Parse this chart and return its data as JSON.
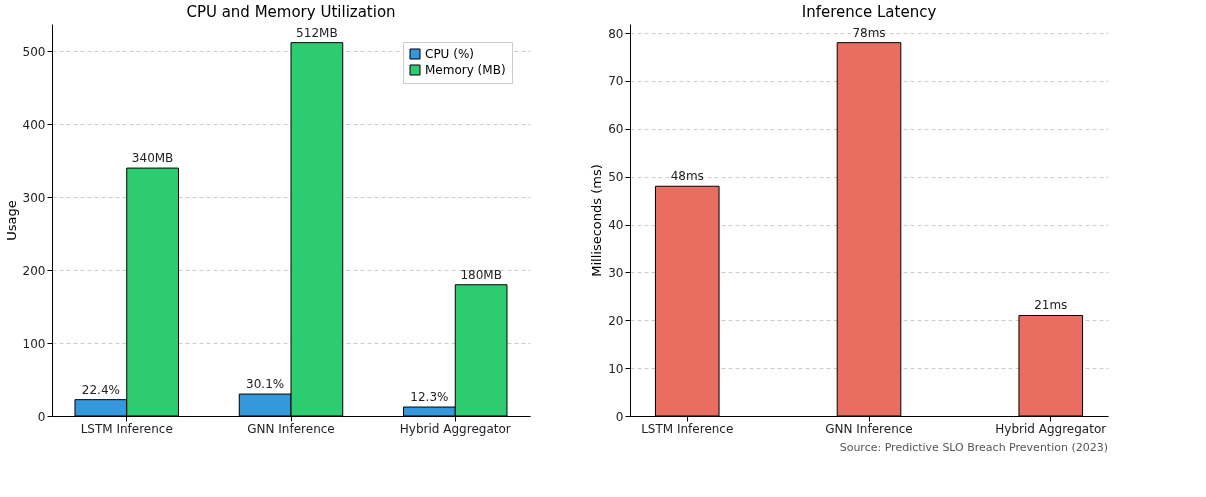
{
  "chart_data": [
    {
      "type": "bar",
      "title": "CPU and Memory Utilization",
      "ylabel": "Usage",
      "categories": [
        "LSTM Inference",
        "GNN Inference",
        "Hybrid Aggregator"
      ],
      "series": [
        {
          "name": "CPU (%)",
          "color": "#3498db",
          "values": [
            22.4,
            30.1,
            12.3
          ],
          "value_labels": [
            "22.4%",
            "30.1%",
            "12.3%"
          ]
        },
        {
          "name": "Memory (MB)",
          "color": "#2ecc71",
          "values": [
            340,
            512,
            180
          ],
          "value_labels": [
            "340MB",
            "512MB",
            "180MB"
          ]
        }
      ],
      "ylim": [
        0,
        537.6
      ],
      "yticks": [
        0,
        100,
        200,
        300,
        400,
        500
      ],
      "grid": "y",
      "legend": "top right"
    },
    {
      "type": "bar",
      "title": "Inference Latency",
      "ylabel": "Milliseconds (ms)",
      "categories": [
        "LSTM Inference",
        "GNN Inference",
        "Hybrid Aggregator"
      ],
      "series": [
        {
          "color": "#e96e61",
          "values": [
            48,
            78,
            21
          ],
          "value_labels": [
            "48ms",
            "78ms",
            "21ms"
          ]
        }
      ],
      "ylim": [
        0,
        81.9
      ],
      "yticks": [
        0,
        10,
        20,
        30,
        40,
        50,
        60,
        70,
        80
      ],
      "grid": "y",
      "annotations": [
        "Source: Predictive SLO Breach Prevention (2023)"
      ]
    }
  ]
}
